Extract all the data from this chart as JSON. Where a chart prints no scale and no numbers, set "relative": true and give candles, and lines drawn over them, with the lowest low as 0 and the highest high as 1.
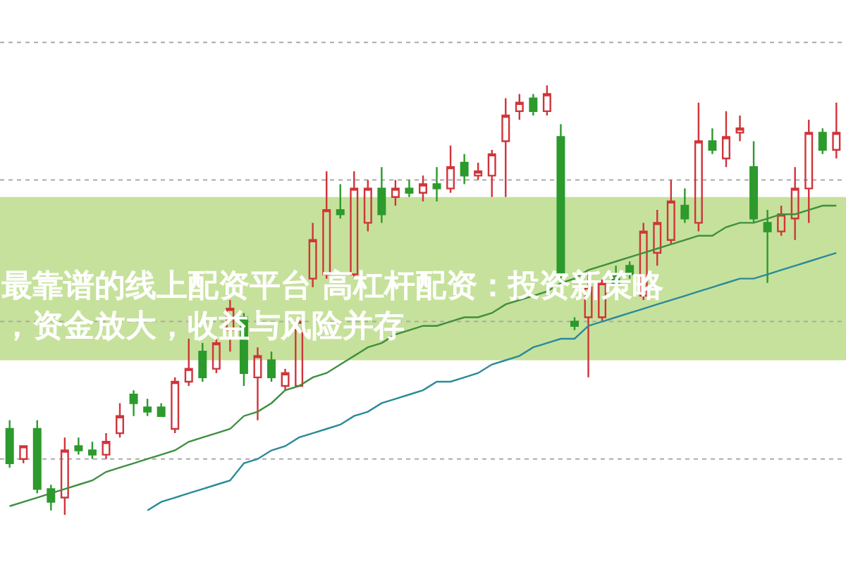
{
  "chart_data": {
    "type": "candlestick",
    "title": "最靠谱的线上配资平台 高杠杆配资：投资新策略，资金放大，收益与风险并存",
    "relative": true,
    "categories": [
      null,
      null,
      null,
      null,
      null,
      null,
      null,
      null,
      null,
      null,
      null,
      null,
      null,
      null,
      null,
      null,
      null,
      null,
      null,
      null,
      null,
      null,
      null,
      null,
      null,
      null,
      null,
      null,
      null,
      null,
      null,
      null,
      null,
      null,
      null,
      null,
      null,
      null,
      null,
      null,
      null,
      null,
      null,
      null,
      null,
      null,
      null,
      null,
      null,
      null,
      null,
      null,
      null,
      null,
      null,
      null,
      null,
      null,
      null,
      null,
      null
    ],
    "ohlc": [
      [
        0.2,
        0.22,
        0.11,
        0.12
      ],
      [
        0.13,
        0.16,
        0.12,
        0.16
      ],
      [
        0.2,
        0.22,
        0.05,
        0.06
      ],
      [
        0.06,
        0.07,
        0.01,
        0.03
      ],
      [
        0.04,
        0.18,
        0,
        0.15
      ],
      [
        0.16,
        0.18,
        0.14,
        0.15
      ],
      [
        0.15,
        0.17,
        0.13,
        0.14
      ],
      [
        0.14,
        0.19,
        0.13,
        0.17
      ],
      [
        0.19,
        0.26,
        0.18,
        0.23
      ],
      [
        0.28,
        0.29,
        0.23,
        0.26
      ],
      [
        0.25,
        0.27,
        0.23,
        0.24
      ],
      [
        0.25,
        0.26,
        0.23,
        0.23
      ],
      [
        0.2,
        0.32,
        0.19,
        0.31
      ],
      [
        0.31,
        0.41,
        0.3,
        0.34
      ],
      [
        0.38,
        0.4,
        0.31,
        0.32
      ],
      [
        0.34,
        0.41,
        0.33,
        0.4
      ],
      [
        0.43,
        0.5,
        0.38,
        0.48
      ],
      [
        0.46,
        0.47,
        0.3,
        0.33
      ],
      [
        0.32,
        0.39,
        0.22,
        0.37
      ],
      [
        0.36,
        0.38,
        0.31,
        0.32
      ],
      [
        0.3,
        0.34,
        0.29,
        0.33
      ],
      [
        0.3,
        0.46,
        0.3,
        0.45
      ],
      [
        0.55,
        0.68,
        0.53,
        0.64
      ],
      [
        0.56,
        0.8,
        0.55,
        0.71
      ],
      [
        0.71,
        0.77,
        0.69,
        0.7
      ],
      [
        0.56,
        0.8,
        0.55,
        0.76
      ],
      [
        0.68,
        0.78,
        0.66,
        0.76
      ],
      [
        0.76,
        0.81,
        0.68,
        0.7
      ],
      [
        0.74,
        0.78,
        0.72,
        0.76
      ],
      [
        0.76,
        0.78,
        0.74,
        0.75
      ],
      [
        0.75,
        0.79,
        0.73,
        0.77
      ],
      [
        0.77,
        0.81,
        0.73,
        0.76
      ],
      [
        0.76,
        0.86,
        0.75,
        0.81
      ],
      [
        0.82,
        0.84,
        0.77,
        0.79
      ],
      [
        0.79,
        0.82,
        0.78,
        0.8
      ],
      [
        0.79,
        0.85,
        0.74,
        0.84
      ],
      [
        0.87,
        0.97,
        0.74,
        0.93
      ],
      [
        0.94,
        0.98,
        0.92,
        0.96
      ],
      [
        0.97,
        0.98,
        0.93,
        0.94
      ],
      [
        0.94,
        1,
        0.93,
        0.98
      ],
      [
        0.88,
        0.91,
        0.55,
        0.56
      ],
      [
        0.45,
        0.46,
        0.43,
        0.44
      ],
      [
        0.46,
        0.56,
        0.32,
        0.53
      ],
      [
        0.46,
        0.55,
        0.45,
        0.54
      ],
      [
        0.56,
        0.58,
        0.53,
        0.54
      ],
      [
        0.58,
        0.59,
        0.55,
        0.56
      ],
      [
        0.51,
        0.68,
        0.5,
        0.66
      ],
      [
        0.61,
        0.71,
        0.58,
        0.68
      ],
      [
        0.64,
        0.78,
        0.63,
        0.73
      ],
      [
        0.72,
        0.76,
        0.68,
        0.69
      ],
      [
        0.68,
        0.96,
        0.66,
        0.87
      ],
      [
        0.87,
        0.9,
        0.84,
        0.85
      ],
      [
        0.83,
        0.94,
        0.81,
        0.88
      ],
      [
        0.89,
        0.93,
        0.87,
        0.9
      ],
      [
        0.81,
        0.87,
        0.68,
        0.69
      ],
      [
        0.68,
        0.71,
        0.54,
        0.66
      ],
      [
        0.66,
        0.72,
        0.65,
        0.7
      ],
      [
        0.69,
        0.81,
        0.64,
        0.76
      ],
      [
        0.76,
        0.92,
        0.68,
        0.89
      ],
      [
        0.89,
        0.9,
        0.84,
        0.85
      ],
      [
        0.85,
        0.96,
        0.83,
        0.89
      ]
    ],
    "series": [
      {
        "type": "line",
        "color": "#3f8f3f",
        "values": [
          0.02,
          0.03,
          0.04,
          0.05,
          0.06,
          0.07,
          0.08,
          0.1,
          0.11,
          0.12,
          0.13,
          0.14,
          0.15,
          0.17,
          0.18,
          0.19,
          0.2,
          0.23,
          0.24,
          0.26,
          0.29,
          0.3,
          0.32,
          0.33,
          0.35,
          0.37,
          0.39,
          0.4,
          0.42,
          0.43,
          0.44,
          0.44,
          0.45,
          0.46,
          0.46,
          0.47,
          0.49,
          0.5,
          0.51,
          0.52,
          0.54,
          0.55,
          0.57,
          0.58,
          0.59,
          0.6,
          0.61,
          0.62,
          0.63,
          0.64,
          0.65,
          0.65,
          0.67,
          0.68,
          0.68,
          0.69,
          0.7,
          0.7,
          0.71,
          0.72,
          0.72
        ]
      },
      {
        "type": "line",
        "color": "#2a8a9a",
        "values": [
          null,
          null,
          null,
          null,
          null,
          null,
          null,
          null,
          null,
          null,
          0.01,
          0.03,
          0.04,
          0.05,
          0.06,
          0.07,
          0.08,
          0.12,
          0.13,
          0.15,
          0.16,
          0.18,
          0.19,
          0.2,
          0.21,
          0.23,
          0.24,
          0.26,
          0.27,
          0.28,
          0.29,
          0.31,
          0.31,
          0.32,
          0.33,
          0.35,
          0.36,
          0.37,
          0.39,
          0.4,
          0.41,
          0.41,
          0.44,
          0.45,
          0.46,
          0.47,
          0.48,
          0.49,
          0.5,
          0.51,
          0.52,
          0.53,
          0.54,
          0.55,
          0.55,
          0.56,
          0.57,
          0.58,
          0.59,
          0.6,
          0.61
        ]
      }
    ],
    "ref_lines": [
      {
        "axis": "y",
        "value": 1.1,
        "color": "#aaaaaa",
        "line_style": "dotted"
      },
      {
        "axis": "y",
        "value": 0.78,
        "color": "#aaaaaa",
        "line_style": "dotted"
      },
      {
        "axis": "y",
        "value": 0.45,
        "color": "#aaaaaa",
        "line_style": "dotted"
      },
      {
        "axis": "y",
        "value": 0.13,
        "color": "#aaaaaa",
        "line_style": "dotted"
      }
    ],
    "bands": [
      {
        "axis": "y",
        "from": 0.36,
        "to": 0.74,
        "color": "#c6e19b"
      }
    ]
  }
}
